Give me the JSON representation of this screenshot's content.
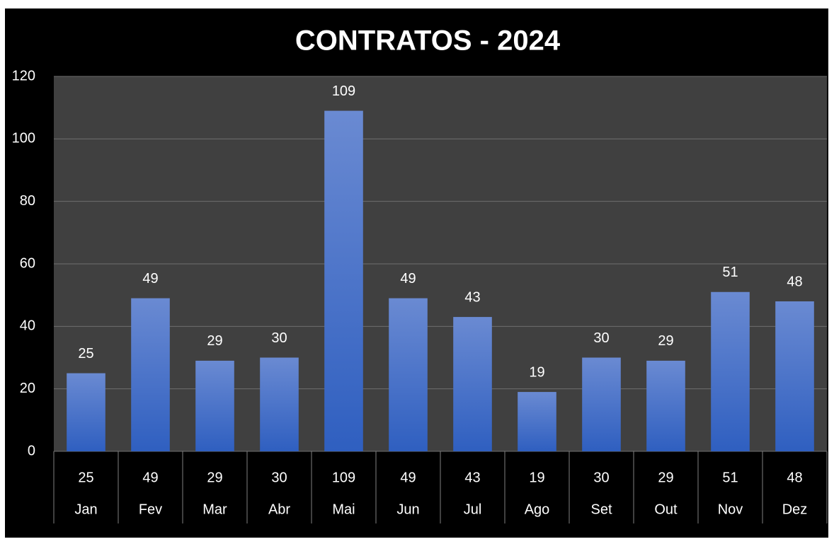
{
  "chart_data": {
    "type": "bar",
    "title": "CONTRATOS - 2024",
    "categories": [
      "Jan",
      "Fev",
      "Mar",
      "Abr",
      "Mai",
      "Jun",
      "Jul",
      "Ago",
      "Set",
      "Out",
      "Nov",
      "Dez"
    ],
    "values": [
      25,
      49,
      29,
      30,
      109,
      49,
      43,
      19,
      30,
      29,
      51,
      48
    ],
    "color": "#4472c4",
    "ylim": [
      0,
      120
    ],
    "yticks": [
      0,
      20,
      40,
      60,
      80,
      100,
      120
    ],
    "grid": true
  }
}
